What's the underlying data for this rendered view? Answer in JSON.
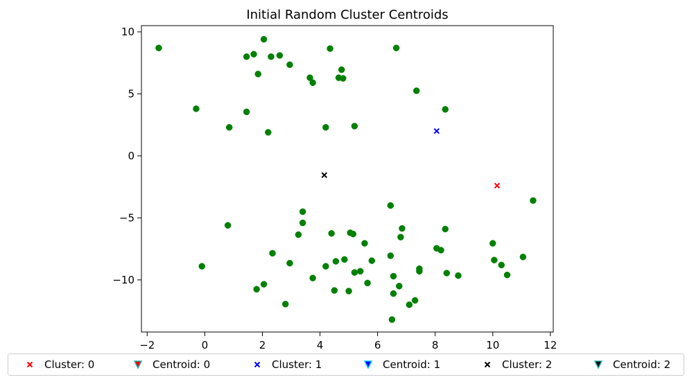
{
  "chart_data": {
    "type": "scatter",
    "title": "Initial Random Cluster Centroids",
    "xlabel": "",
    "ylabel": "",
    "xlim": [
      -2.2,
      12.1
    ],
    "ylim": [
      -14.2,
      10.5
    ],
    "xticks": [
      -2,
      0,
      2,
      4,
      6,
      8,
      10,
      12
    ],
    "yticks": [
      10,
      5,
      0,
      -5,
      -10
    ],
    "xtick_labels": [
      "−2",
      "0",
      "2",
      "4",
      "6",
      "8",
      "10",
      "12"
    ],
    "ytick_labels": [
      "10",
      "5",
      "0",
      "−5",
      "−10"
    ],
    "grid": false,
    "legend_position": "below plot, single row",
    "points": {
      "color": "#008000",
      "x": [
        -1.6,
        2.05,
        1.45,
        1.7,
        2.3,
        2.6,
        1.85,
        2.95,
        4.35,
        6.65,
        3.65,
        3.75,
        4.75,
        4.65,
        4.8,
        7.35,
        -0.3,
        1.45,
        8.35,
        0.85,
        2.2,
        4.2,
        5.2,
        3.4,
        3.4,
        6.45,
        0.8,
        3.25,
        4.4,
        6.85,
        8.35,
        5.05,
        5.15,
        5.55,
        6.8,
        -0.1,
        2.35,
        2.95,
        4.2,
        4.55,
        4.85,
        5.8,
        6.45,
        8.05,
        8.2,
        10.0,
        10.05,
        3.75,
        5.2,
        5.4,
        7.45,
        7.45,
        8.4,
        8.8,
        10.3,
        11.05,
        10.5,
        11.4,
        1.8,
        2.05,
        5.65,
        6.55,
        6.75,
        2.8,
        4.5,
        5.0,
        6.55,
        7.1,
        7.3,
        6.5
      ],
      "y": [
        8.7,
        9.4,
        8.0,
        8.2,
        8.0,
        8.1,
        6.6,
        7.35,
        8.65,
        8.7,
        6.3,
        5.9,
        6.95,
        6.3,
        6.25,
        5.25,
        3.8,
        3.55,
        3.75,
        2.3,
        1.9,
        2.3,
        2.4,
        -4.5,
        -5.4,
        -4.0,
        -5.6,
        -6.35,
        -6.25,
        -5.85,
        -5.9,
        -6.2,
        -6.3,
        -7.05,
        -6.55,
        -8.9,
        -7.85,
        -8.65,
        -8.9,
        -8.5,
        -8.35,
        -8.45,
        -8.05,
        -7.45,
        -7.6,
        -7.05,
        -8.4,
        -9.85,
        -9.4,
        -9.3,
        -9.1,
        -9.3,
        -9.45,
        -9.65,
        -8.8,
        -8.15,
        -9.6,
        -3.6,
        -10.75,
        -10.35,
        -10.25,
        -9.7,
        -10.5,
        -11.95,
        -10.85,
        -10.9,
        -11.1,
        -12.0,
        -11.65,
        -13.2
      ]
    },
    "series": [
      {
        "name": "Cluster: 0",
        "marker": "x",
        "color": "#ff0000",
        "x": [
          10.15
        ],
        "y": [
          -2.4
        ]
      },
      {
        "name": "Centroid: 0",
        "marker": "v",
        "color": "#ff0000",
        "edgecolor": "#20b2aa",
        "x": [],
        "y": []
      },
      {
        "name": "Cluster: 1",
        "marker": "x",
        "color": "#0000ff",
        "x": [
          8.05
        ],
        "y": [
          2.0
        ]
      },
      {
        "name": "Centroid: 1",
        "marker": "v",
        "color": "#0000ff",
        "edgecolor": "#00bfff",
        "x": [],
        "y": []
      },
      {
        "name": "Cluster: 2",
        "marker": "x",
        "color": "#000000",
        "x": [
          4.15
        ],
        "y": [
          -1.55
        ]
      },
      {
        "name": "Centroid: 2",
        "marker": "v",
        "color": "#000000",
        "edgecolor": "#20b2aa",
        "x": [],
        "y": []
      }
    ]
  }
}
